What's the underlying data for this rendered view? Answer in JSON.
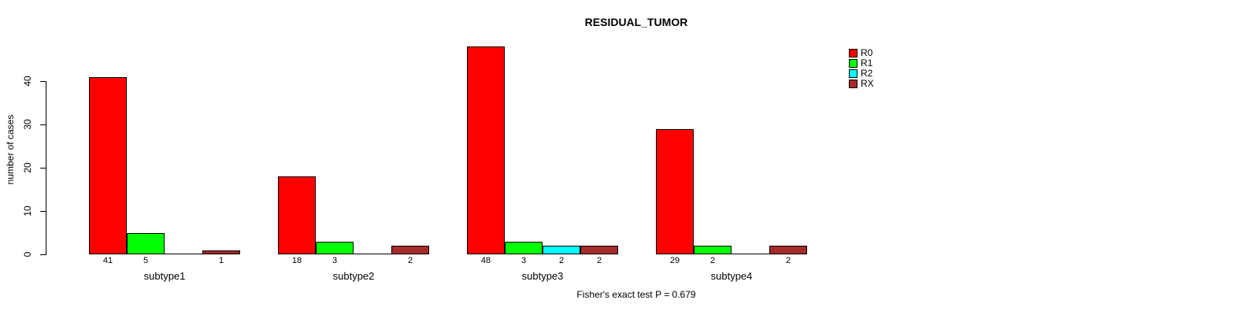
{
  "chart_data": {
    "type": "bar",
    "title": "RESIDUAL_TUMOR",
    "ylabel": "number of cases",
    "xlabel": "",
    "caption": "Fisher's exact test P = 0.679",
    "categories": [
      "subtype1",
      "subtype2",
      "subtype3",
      "subtype4"
    ],
    "series": [
      {
        "name": "R0",
        "color": "#FF0000",
        "values": [
          41,
          18,
          48,
          29
        ]
      },
      {
        "name": "R1",
        "color": "#00FF00",
        "values": [
          5,
          3,
          3,
          2
        ]
      },
      {
        "name": "R2",
        "color": "#00FFFF",
        "values": [
          0,
          0,
          2,
          0
        ]
      },
      {
        "name": "RX",
        "color": "#A52A2A",
        "values": [
          1,
          2,
          2,
          2
        ]
      }
    ],
    "yticks": [
      0,
      10,
      20,
      30,
      40
    ],
    "ylim": [
      0,
      48
    ],
    "grid": false,
    "legend_position": "top-right",
    "show_value_labels": true,
    "value_labels_hidden_when_zero": true
  }
}
